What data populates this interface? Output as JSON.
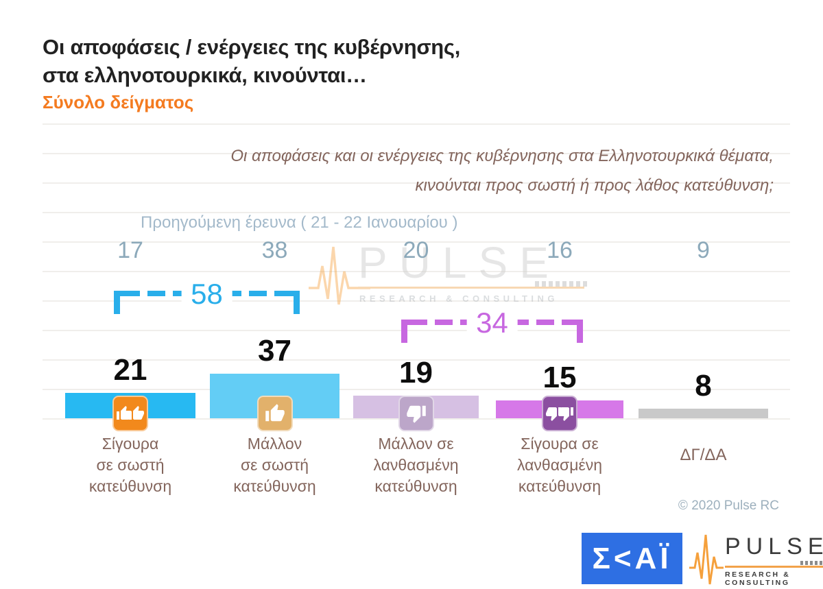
{
  "header": {
    "title_line1": "Οι αποφάσεις / ενέργειες της κυβέρνησης,",
    "title_line2": "στα ελληνοτουρκικά, κινούνται…",
    "subtitle": "Σύνολο δείγματος"
  },
  "question": {
    "line1": "Οι αποφάσεις και οι ενέργειες της κυβέρνησης στα Ελληνοτουρκικά θέματα,",
    "line2": "κινούνται προς σωστή ή προς λάθος κατεύθυνση;"
  },
  "previous_survey": {
    "label": "Προηγούμενη έρευνα  ( 21 - 22 Ιανουαρίου )"
  },
  "chart_data": {
    "type": "bar",
    "title": "Οι αποφάσεις / ενέργειες της κυβέρνησης, στα ελληνοτουρκικά, κινούνται…",
    "subtitle": "Σύνολο δείγματος",
    "categories": [
      "Σίγουρα σε σωστή κατεύθυνση",
      "Μάλλον σε σωστή κατεύθυνση",
      "Μάλλον σε λανθασμένη κατεύθυνση",
      "Σίγουρα σε λανθασμένη κατεύθυνση",
      "ΔΓ/ΔΑ"
    ],
    "series": [
      {
        "name": "current",
        "values": [
          21,
          37,
          19,
          15,
          8
        ]
      },
      {
        "name": "previous",
        "values": [
          17,
          38,
          20,
          16,
          9
        ]
      }
    ],
    "columns": [
      {
        "label": "Σίγουρα σε σωστή κατεύθυνση",
        "label_display": "Σίγουρα\nσε σωστή\nκατεύθυνση",
        "value": 21,
        "previous": 17,
        "bar_color": "#27b9f2",
        "icon": "thumbs-up-double-icon",
        "icon_bg": "#f2891c"
      },
      {
        "label": "Μάλλον σε σωστή κατεύθυνση",
        "label_display": "Μάλλον\nσε σωστή\nκατεύθυνση",
        "value": 37,
        "previous": 38,
        "bar_color": "#63cdf5",
        "icon": "thumbs-up-icon",
        "icon_bg": "#e2b16b"
      },
      {
        "label": "Μάλλον σε λανθασμένη κατεύθυνση",
        "label_display": "Μάλλον σε\nλανθασμένη\nκατεύθυνση",
        "value": 19,
        "previous": 20,
        "bar_color": "#d6c0e3",
        "icon": "thumbs-down-icon",
        "icon_bg": "#bca6c9"
      },
      {
        "label": "Σίγουρα σε λανθασμένη κατεύθυνση",
        "label_display": "Σίγουρα σε\nλανθασμένη\nκατεύθυνση",
        "value": 15,
        "previous": 16,
        "bar_color": "#d678e8",
        "icon": "thumbs-down-double-icon",
        "icon_bg": "#8b4fa0"
      },
      {
        "label": "ΔΓ/ΔΑ",
        "label_display": "ΔΓ/ΔΑ",
        "value": 8,
        "previous": 9,
        "bar_color": "#c9c9c9",
        "icon": "none",
        "icon_bg": ""
      }
    ],
    "brackets": [
      {
        "value": 58,
        "color": "#29aeea",
        "from": "Σίγουρα σε σωστή κατεύθυνση",
        "to": "Μάλλον σε σωστή κατεύθυνση"
      },
      {
        "value": 34,
        "color": "#c767e0",
        "from": "Μάλλον σε λανθασμένη κατεύθυνση",
        "to": "Σίγουρα σε λανθασμένη κατεύθυνση"
      }
    ],
    "ylim": [
      0,
      40
    ],
    "grid": "horizontal",
    "legend_position": "none"
  },
  "watermark": {
    "brand": "PULSE",
    "tagline": "RESEARCH & CONSULTING"
  },
  "footer": {
    "copyright": "© 2020 Pulse RC"
  },
  "logos": {
    "skai": {
      "text": "Σ<ΑΪ",
      "bg": "#2e6fe3"
    },
    "pulse": {
      "brand": "PULSE",
      "tagline": "RESEARCH & CONSULTING",
      "accent": "#f2a24a"
    }
  }
}
